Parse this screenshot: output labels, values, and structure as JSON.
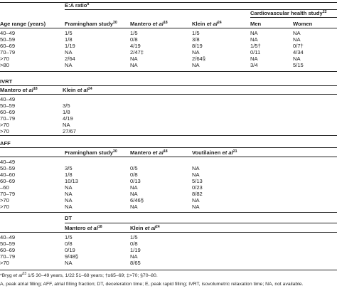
{
  "age_header": "Age range (years)",
  "ea": {
    "title": "E:A ratio",
    "title_sup": "a",
    "studies": [
      {
        "name": "Framingham study",
        "sup": "20",
        "italic_part": ""
      },
      {
        "name": "Mantero ",
        "sup": "18",
        "italic_part": "et al"
      },
      {
        "name": "Klein ",
        "sup": "24",
        "italic_part": "et al"
      }
    ],
    "chs": {
      "name": "Cardiovascular health study",
      "sup": "22",
      "men": "Men",
      "women": "Women"
    },
    "rows": [
      {
        "age": "40–49",
        "v": [
          "1/5",
          "1/5",
          "1/5",
          "NA",
          "NA"
        ]
      },
      {
        "age": "50–59",
        "v": [
          "1/8",
          "0/8",
          "3/8",
          "NA",
          "NA"
        ]
      },
      {
        "age": "60–69",
        "v": [
          "1/19",
          "4/19",
          "8/19",
          "1/5†",
          "0/7†"
        ]
      },
      {
        "age": "70–79",
        "v": [
          "NA",
          "2/47‡",
          "NA",
          "0/11",
          "4/34"
        ]
      },
      {
        "age": ">70",
        "v": [
          "2/64",
          "NA",
          "2/64§",
          "NA",
          "NA"
        ]
      },
      {
        "age": ">80",
        "v": [
          "NA",
          "NA",
          "NA",
          "3/4",
          "5/15"
        ]
      }
    ]
  },
  "ivrt": {
    "title": "IVRT",
    "studies": [
      {
        "name": "Mantero ",
        "sup": "18",
        "italic_part": "et al"
      },
      {
        "name": "Klein ",
        "sup": "24",
        "italic_part": "et al"
      }
    ],
    "rows": [
      {
        "age": "40–49",
        "v": [
          "",
          ""
        ]
      },
      {
        "age": "50–59",
        "v": [
          "4/5",
          "3/5"
        ]
      },
      {
        "age": "60–69",
        "v": [
          "1/8",
          "1/8"
        ]
      },
      {
        "age": "70–79",
        "v": [
          "1/19",
          "4/19"
        ]
      },
      {
        "age": ">70",
        "v": [
          "20/51§",
          "NA"
        ]
      },
      {
        "age": ">70",
        "v": [
          "NA",
          "27/67"
        ]
      }
    ]
  },
  "aff": {
    "title": "AFF",
    "studies": [
      {
        "name": "Framingham study",
        "sup": "20",
        "italic_part": ""
      },
      {
        "name": "Mantero ",
        "sup": "18",
        "italic_part": "et al"
      },
      {
        "name": "Voutilainen ",
        "sup": "21",
        "italic_part": "et al"
      }
    ],
    "rows": [
      {
        "age": "40–49",
        "v": [
          "",
          "",
          ""
        ]
      },
      {
        "age": "50–59",
        "v": [
          "3/5",
          "0/5",
          "NA"
        ]
      },
      {
        "age": "40–60",
        "v": [
          "1/8",
          "0/8",
          "NA"
        ]
      },
      {
        "age": "60–69",
        "v": [
          "10/13",
          "0/13",
          "5/13"
        ]
      },
      {
        "age": "–60",
        "v": [
          "NA",
          "NA",
          "0/23"
        ]
      },
      {
        "age": "70–79",
        "v": [
          "NA",
          "NA",
          "8/82"
        ]
      },
      {
        "age": ">70",
        "v": [
          "NA",
          "6/46§",
          "NA"
        ]
      },
      {
        "age": ">70",
        "v": [
          "NA",
          "NA",
          "NA"
        ]
      }
    ]
  },
  "dt": {
    "title": "DT",
    "studies": [
      {
        "name": "Mantero ",
        "sup": "18",
        "italic_part": "et al"
      },
      {
        "name": "Klein ",
        "sup": "24",
        "italic_part": "et al"
      }
    ],
    "rows": [
      {
        "age": "40–49",
        "v": [
          "1/5",
          "1/5"
        ]
      },
      {
        "age": "50–59",
        "v": [
          "0/8",
          "0/8"
        ]
      },
      {
        "age": "60–69",
        "v": [
          "0/19",
          "1/19"
        ]
      },
      {
        "age": "70–79",
        "v": [
          "9/48§",
          "NA"
        ]
      },
      {
        "age": ">70",
        "v": [
          "NA",
          "8/65"
        ]
      }
    ]
  },
  "footnotes": {
    "line1_prefix": "*Bryg ",
    "line1_italic": "et al",
    "line1_sup": "23",
    "line1_text": " 1/5 30–49 years, 1/22 51–68 years; †≥65–69; ‡>70; §70–80.",
    "line2": "A, peak atrial filling; AFF, atrial filling fraction; DT, deceleration time; E, peak rapid filling; IVRT, isovolumetric relaxation time; NA, not available."
  }
}
